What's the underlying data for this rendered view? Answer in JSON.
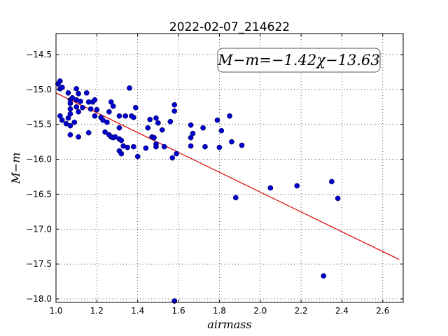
{
  "chart_data": {
    "type": "scatter",
    "title": "2022-02-07_214622",
    "xlabel": "airmass",
    "ylabel": "M−m",
    "xlim": [
      1.0,
      2.7
    ],
    "ylim": [
      -18.05,
      -14.2
    ],
    "xticks": [
      1.0,
      1.2,
      1.4,
      1.6,
      1.8,
      2.0,
      2.2,
      2.4,
      2.6
    ],
    "xtick_labels": [
      "1.0",
      "1.2",
      "1.4",
      "1.6",
      "1.8",
      "2.0",
      "2.2",
      "2.4",
      "2.6"
    ],
    "yticks": [
      -14.5,
      -15.0,
      -15.5,
      -16.0,
      -16.5,
      -17.0,
      -17.5,
      -18.0
    ],
    "ytick_labels": [
      "−14.5",
      "−15.0",
      "−15.5",
      "−16.0",
      "−16.5",
      "−17.0",
      "−17.5",
      "−18.0"
    ],
    "grid": true,
    "annotation": "M−m=−1.42χ−13.63",
    "points_color": "#0000cc",
    "fit_color": "#dd0000",
    "fit": {
      "slope": -1.42,
      "intercept": -13.63,
      "x_range": [
        1.0,
        2.68
      ]
    },
    "points": [
      [
        1.01,
        -14.92
      ],
      [
        1.02,
        -14.88
      ],
      [
        1.02,
        -14.99
      ],
      [
        1.03,
        -14.97
      ],
      [
        1.02,
        -15.38
      ],
      [
        1.03,
        -15.44
      ],
      [
        1.05,
        -15.49
      ],
      [
        1.06,
        -15.41
      ],
      [
        1.06,
        -15.05
      ],
      [
        1.07,
        -15.15
      ],
      [
        1.07,
        -15.2
      ],
      [
        1.07,
        -15.28
      ],
      [
        1.07,
        -15.35
      ],
      [
        1.07,
        -15.52
      ],
      [
        1.07,
        -15.65
      ],
      [
        1.08,
        -15.12
      ],
      [
        1.09,
        -15.47
      ],
      [
        1.1,
        -14.99
      ],
      [
        1.1,
        -15.15
      ],
      [
        1.1,
        -15.25
      ],
      [
        1.11,
        -15.06
      ],
      [
        1.11,
        -15.32
      ],
      [
        1.12,
        -15.17
      ],
      [
        1.11,
        -15.68
      ],
      [
        1.13,
        -15.26
      ],
      [
        1.15,
        -15.05
      ],
      [
        1.16,
        -15.18
      ],
      [
        1.16,
        -15.62
      ],
      [
        1.17,
        -15.28
      ],
      [
        1.18,
        -15.18
      ],
      [
        1.19,
        -15.15
      ],
      [
        1.19,
        -15.38
      ],
      [
        1.2,
        -15.29
      ],
      [
        1.22,
        -15.4
      ],
      [
        1.23,
        -15.44
      ],
      [
        1.24,
        -15.61
      ],
      [
        1.25,
        -15.47
      ],
      [
        1.26,
        -15.32
      ],
      [
        1.26,
        -15.65
      ],
      [
        1.27,
        -15.68
      ],
      [
        1.27,
        -15.18
      ],
      [
        1.28,
        -15.24
      ],
      [
        1.28,
        -15.69
      ],
      [
        1.29,
        -15.68
      ],
      [
        1.31,
        -15.38
      ],
      [
        1.31,
        -15.55
      ],
      [
        1.31,
        -15.71
      ],
      [
        1.32,
        -15.73
      ],
      [
        1.31,
        -15.88
      ],
      [
        1.32,
        -15.92
      ],
      [
        1.33,
        -15.81
      ],
      [
        1.34,
        -15.38
      ],
      [
        1.35,
        -15.83
      ],
      [
        1.36,
        -14.98
      ],
      [
        1.37,
        -15.38
      ],
      [
        1.38,
        -15.4
      ],
      [
        1.38,
        -15.82
      ],
      [
        1.39,
        -15.26
      ],
      [
        1.4,
        -15.96
      ],
      [
        1.44,
        -15.84
      ],
      [
        1.45,
        -15.55
      ],
      [
        1.46,
        -15.43
      ],
      [
        1.47,
        -15.68
      ],
      [
        1.48,
        -15.69
      ],
      [
        1.49,
        -15.41
      ],
      [
        1.49,
        -15.78
      ],
      [
        1.49,
        -15.82
      ],
      [
        1.5,
        -15.48
      ],
      [
        1.52,
        -15.58
      ],
      [
        1.53,
        -15.82
      ],
      [
        1.56,
        -15.46
      ],
      [
        1.57,
        -15.98
      ],
      [
        1.58,
        -15.22
      ],
      [
        1.58,
        -15.31
      ],
      [
        1.59,
        -15.92
      ],
      [
        1.58,
        -18.03
      ],
      [
        1.66,
        -15.51
      ],
      [
        1.66,
        -15.69
      ],
      [
        1.67,
        -15.63
      ],
      [
        1.66,
        -15.81
      ],
      [
        1.72,
        -15.55
      ],
      [
        1.73,
        -15.82
      ],
      [
        1.79,
        -15.44
      ],
      [
        1.8,
        -15.83
      ],
      [
        1.81,
        -15.59
      ],
      [
        1.85,
        -15.38
      ],
      [
        1.86,
        -15.75
      ],
      [
        1.88,
        -16.55
      ],
      [
        1.91,
        -15.8
      ],
      [
        2.05,
        -16.41
      ],
      [
        2.18,
        -16.38
      ],
      [
        2.31,
        -17.67
      ],
      [
        2.35,
        -16.32
      ],
      [
        2.38,
        -16.56
      ]
    ]
  }
}
